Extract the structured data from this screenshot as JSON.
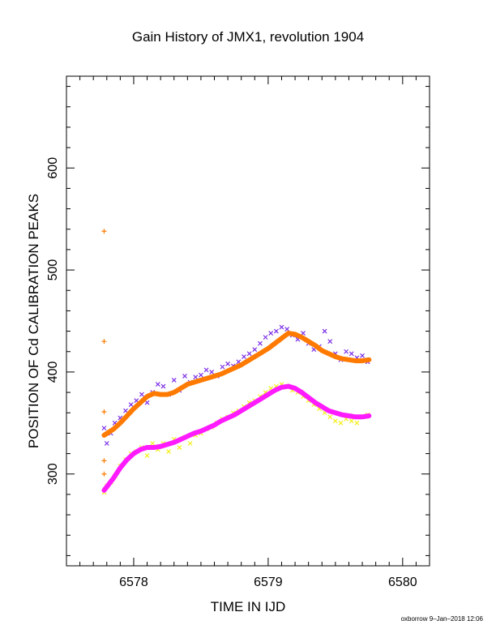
{
  "chart_data": {
    "type": "scatter",
    "title": "Gain History of JMX1, revolution 1904",
    "xlabel": "TIME IN IJD",
    "ylabel": "POSITION OF Cd CALIBRATION PEAKS",
    "xlim": [
      6577.5,
      6580.2
    ],
    "ylim": [
      210,
      690
    ],
    "xticks": [
      6578,
      6579,
      6580
    ],
    "yticks": [
      300,
      400,
      500,
      600
    ],
    "xtick_labels": [
      "6578",
      "6579",
      "6580"
    ],
    "ytick_labels": [
      "300",
      "400",
      "500",
      "600"
    ],
    "grid": false,
    "series": [
      {
        "marker": "x",
        "color": "#7b2ee6",
        "x": [
          6577.78,
          6577.8,
          6577.83,
          6577.86,
          6577.9,
          6577.94,
          6577.98,
          6578.02,
          6578.06,
          6578.1,
          6578.14,
          6578.18,
          6578.22,
          6578.26,
          6578.3,
          6578.34,
          6578.38,
          6578.42,
          6578.46,
          6578.5,
          6578.54,
          6578.58,
          6578.62,
          6578.66,
          6578.7,
          6578.74,
          6578.78,
          6578.82,
          6578.86,
          6578.9,
          6578.94,
          6578.98,
          6579.02,
          6579.06,
          6579.1,
          6579.14,
          6579.18,
          6579.22,
          6579.26,
          6579.3,
          6579.34,
          6579.38,
          6579.42,
          6579.46,
          6579.5,
          6579.54,
          6579.58,
          6579.62,
          6579.66,
          6579.7,
          6579.74
        ],
        "y": [
          345,
          330,
          340,
          350,
          355,
          362,
          368,
          372,
          378,
          370,
          380,
          388,
          386,
          378,
          392,
          382,
          396,
          390,
          395,
          397,
          402,
          400,
          396,
          405,
          408,
          406,
          410,
          415,
          418,
          422,
          428,
          434,
          438,
          440,
          444,
          442,
          436,
          432,
          438,
          428,
          422,
          425,
          440,
          430,
          418,
          412,
          420,
          418,
          414,
          416,
          410
        ]
      },
      {
        "marker": "x",
        "color": "#f2ef1a",
        "x": [
          6577.78,
          6577.8,
          6577.83,
          6577.86,
          6577.9,
          6577.94,
          6577.98,
          6578.02,
          6578.06,
          6578.1,
          6578.14,
          6578.18,
          6578.22,
          6578.26,
          6578.3,
          6578.34,
          6578.38,
          6578.42,
          6578.46,
          6578.5,
          6578.54,
          6578.58,
          6578.62,
          6578.66,
          6578.7,
          6578.74,
          6578.78,
          6578.82,
          6578.86,
          6578.9,
          6578.94,
          6578.98,
          6579.02,
          6579.06,
          6579.1,
          6579.14,
          6579.18,
          6579.22,
          6579.26,
          6579.3,
          6579.34,
          6579.38,
          6579.42,
          6579.46,
          6579.5,
          6579.54,
          6579.58,
          6579.62,
          6579.66,
          6579.7,
          6579.74
        ],
        "y": [
          282,
          288,
          292,
          298,
          308,
          314,
          320,
          322,
          326,
          318,
          330,
          324,
          330,
          322,
          334,
          326,
          336,
          330,
          338,
          340,
          344,
          346,
          350,
          354,
          356,
          360,
          362,
          366,
          370,
          372,
          376,
          380,
          384,
          386,
          388,
          386,
          382,
          380,
          376,
          372,
          368,
          364,
          360,
          356,
          352,
          350,
          354,
          352,
          350,
          356,
          358
        ]
      },
      {
        "marker": "line-thick",
        "color": "#ff7a00",
        "x": [
          6577.78,
          6577.85,
          6577.9,
          6577.95,
          6578.0,
          6578.05,
          6578.1,
          6578.15,
          6578.2,
          6578.25,
          6578.3,
          6578.35,
          6578.4,
          6578.45,
          6578.5,
          6578.55,
          6578.6,
          6578.65,
          6578.7,
          6578.75,
          6578.8,
          6578.85,
          6578.9,
          6578.95,
          6579.0,
          6579.05,
          6579.1,
          6579.15,
          6579.2,
          6579.25,
          6579.3,
          6579.35,
          6579.4,
          6579.45,
          6579.5,
          6579.55,
          6579.6,
          6579.65,
          6579.7,
          6579.75
        ],
        "y": [
          338,
          344,
          350,
          357,
          364,
          370,
          376,
          379,
          378,
          378,
          380,
          384,
          388,
          390,
          392,
          394,
          396,
          398,
          401,
          404,
          407,
          411,
          415,
          419,
          423,
          428,
          433,
          438,
          437,
          434,
          430,
          426,
          421,
          418,
          415,
          413,
          412,
          411,
          411,
          412
        ]
      },
      {
        "marker": "line-thick",
        "color": "#ff1aff",
        "x": [
          6577.78,
          6577.85,
          6577.9,
          6577.95,
          6578.0,
          6578.05,
          6578.1,
          6578.15,
          6578.2,
          6578.25,
          6578.3,
          6578.35,
          6578.4,
          6578.45,
          6578.5,
          6578.55,
          6578.6,
          6578.65,
          6578.7,
          6578.75,
          6578.8,
          6578.85,
          6578.9,
          6578.95,
          6579.0,
          6579.05,
          6579.1,
          6579.15,
          6579.2,
          6579.25,
          6579.3,
          6579.35,
          6579.4,
          6579.45,
          6579.5,
          6579.55,
          6579.6,
          6579.65,
          6579.7,
          6579.75
        ],
        "y": [
          284,
          296,
          306,
          314,
          320,
          324,
          326,
          326,
          327,
          329,
          331,
          334,
          337,
          340,
          342,
          345,
          348,
          352,
          355,
          358,
          362,
          366,
          370,
          374,
          378,
          382,
          385,
          386,
          384,
          380,
          375,
          370,
          366,
          362,
          360,
          358,
          357,
          356,
          356,
          357
        ]
      },
      {
        "marker": "+",
        "color": "#ff7a00",
        "x": [
          6577.78,
          6577.78,
          6577.78,
          6577.78,
          6577.78
        ],
        "y": [
          538,
          430,
          361,
          313,
          300
        ]
      }
    ]
  },
  "footer_text": "oxborrow  9–Jan–2018 12:06"
}
